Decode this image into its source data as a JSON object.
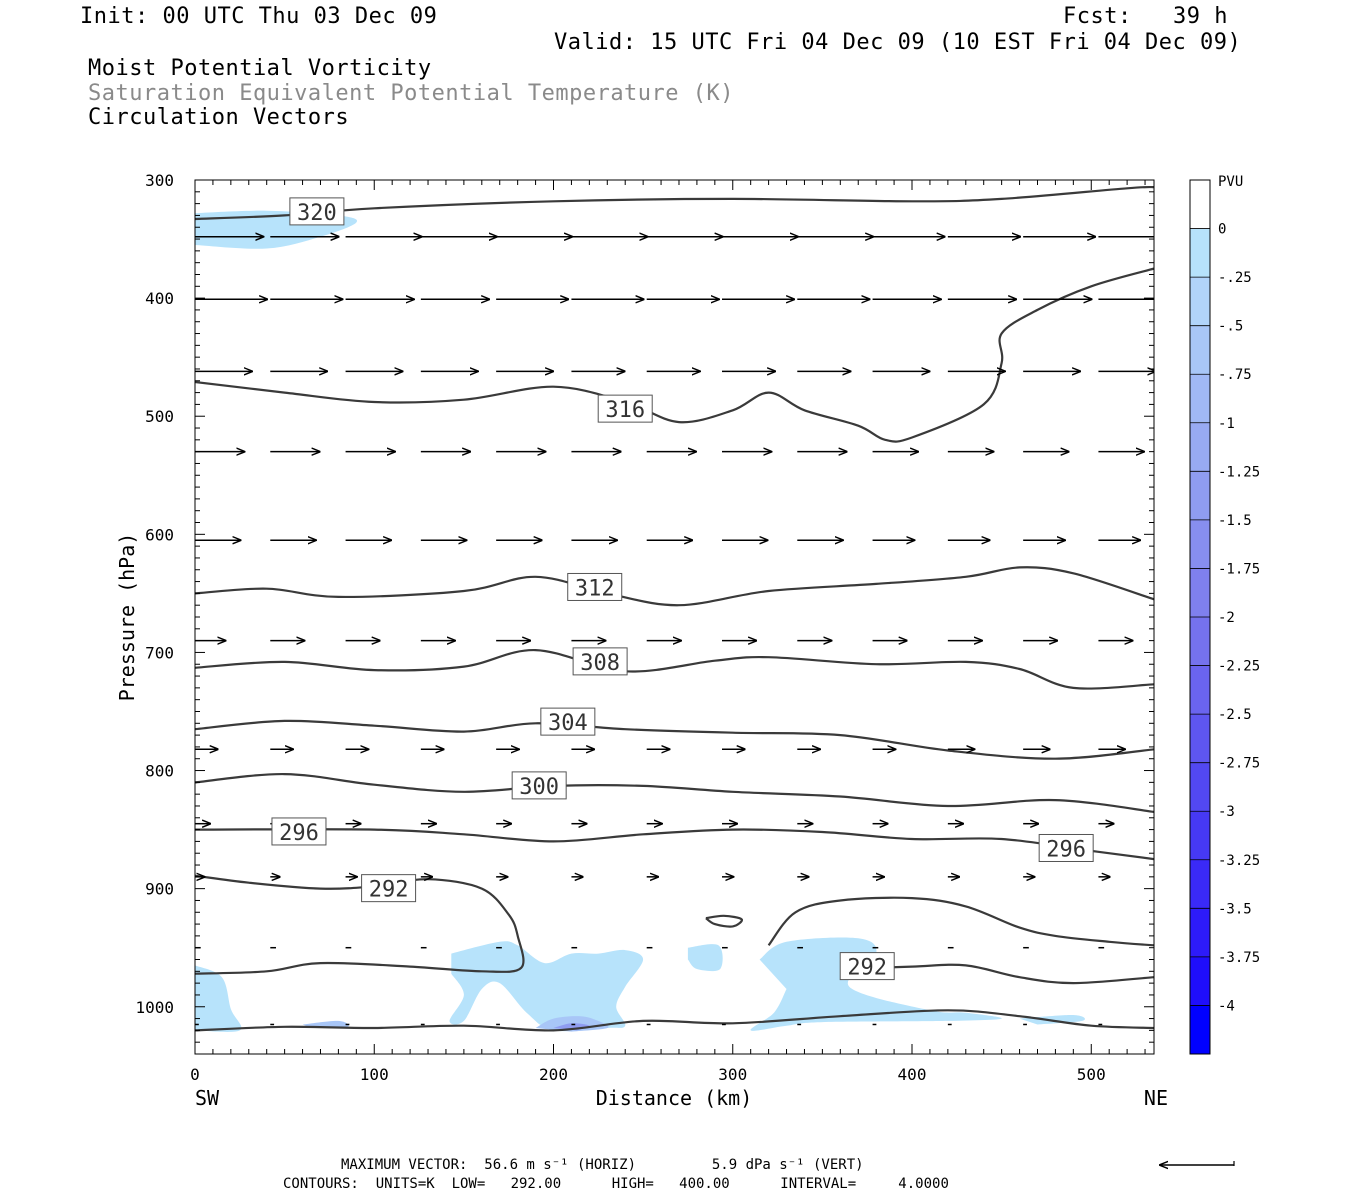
{
  "header": {
    "init": "Init: 00 UTC Thu 03 Dec 09",
    "fcst": "Fcst:   39 h",
    "valid": "Valid: 15 UTC Fri 04 Dec 09 (10 EST Fri 04 Dec 09)",
    "field1": "Moist Potential Vorticity",
    "field2": "Saturation Equivalent Potential Temperature (K)",
    "field3": "Circulation Vectors"
  },
  "footer": {
    "max_vector": "MAXIMUM VECTOR:  56.6 m s⁻¹ (HORIZ)         5.9 dPa s⁻¹ (VERT)",
    "contours": "CONTOURS:  UNITS=K  LOW=   292.00      HIGH=   400.00      INTERVAL=     4.0000"
  },
  "colors": {
    "contour": "#3a3a3a",
    "pv_light": "#b7e3fb",
    "pv_mid": "#a8c6f7",
    "pv_dark": "#7f88ee",
    "colorbar_deep": "#0000ff"
  },
  "chart_data": {
    "type": "cross-section",
    "title": "Moist Potential Vorticity / Saturation Equivalent Potential Temperature (K) / Circulation Vectors",
    "xlabel": "Distance (km)",
    "ylabel": "Pressure (hPa)",
    "xlim": [
      0,
      535
    ],
    "ylim": [
      1040,
      300
    ],
    "x_ticks": [
      0,
      100,
      200,
      300,
      400,
      500
    ],
    "y_ticks": [
      300,
      400,
      500,
      600,
      700,
      800,
      900,
      1000
    ],
    "x_end_labels": {
      "left": "SW",
      "right": "NE"
    },
    "colorbar": {
      "title": "PVU",
      "levels": [
        "0",
        "-.25",
        "-.5",
        "-.75",
        "-1",
        "-1.25",
        "-1.5",
        "-1.75",
        "-2",
        "-2.25",
        "-2.5",
        "-2.75",
        "-3",
        "-3.25",
        "-3.5",
        "-3.75",
        "-4"
      ],
      "colors": [
        "#ffffff",
        "#b7e3fb",
        "#b1d4fa",
        "#a8c6f7",
        "#a0b8f5",
        "#98aaf3",
        "#8f9cf1",
        "#878eef",
        "#7f80ee",
        "#7572ee",
        "#6a64ef",
        "#5e56f0",
        "#5248f2",
        "#4639f4",
        "#3a2af7",
        "#2d1bfa",
        "#1f0efc",
        "#0000ff"
      ]
    },
    "theta_e_contours": [
      {
        "value": 320,
        "label": "320",
        "label_at": [
          68,
          327
        ],
        "points": [
          [
            0,
            333
          ],
          [
            50,
            330
          ],
          [
            100,
            324
          ],
          [
            200,
            318
          ],
          [
            300,
            316
          ],
          [
            400,
            318
          ],
          [
            450,
            316
          ],
          [
            520,
            307
          ],
          [
            535,
            306
          ]
        ]
      },
      {
        "value": 316,
        "label": "316",
        "label_at": [
          240,
          494
        ],
        "points": [
          [
            0,
            471
          ],
          [
            50,
            480
          ],
          [
            100,
            488
          ],
          [
            150,
            486
          ],
          [
            200,
            475
          ],
          [
            240,
            488
          ],
          [
            270,
            505
          ],
          [
            300,
            495
          ],
          [
            320,
            480
          ],
          [
            340,
            495
          ],
          [
            370,
            508
          ],
          [
            385,
            520
          ],
          [
            400,
            518
          ],
          [
            440,
            490
          ],
          [
            450,
            455
          ],
          [
            450,
            430
          ],
          [
            470,
            410
          ],
          [
            500,
            390
          ],
          [
            535,
            375
          ]
        ]
      },
      {
        "value": 312,
        "label": "312",
        "label_at": [
          223,
          645
        ],
        "points": [
          [
            0,
            650
          ],
          [
            40,
            646
          ],
          [
            80,
            653
          ],
          [
            150,
            648
          ],
          [
            190,
            636
          ],
          [
            230,
            650
          ],
          [
            270,
            660
          ],
          [
            320,
            648
          ],
          [
            380,
            642
          ],
          [
            430,
            636
          ],
          [
            460,
            628
          ],
          [
            490,
            633
          ],
          [
            535,
            655
          ]
        ]
      },
      {
        "value": 308,
        "label": "308",
        "label_at": [
          226,
          708
        ],
        "points": [
          [
            0,
            713
          ],
          [
            50,
            708
          ],
          [
            100,
            715
          ],
          [
            150,
            712
          ],
          [
            190,
            698
          ],
          [
            240,
            716
          ],
          [
            290,
            707
          ],
          [
            320,
            704
          ],
          [
            380,
            710
          ],
          [
            430,
            708
          ],
          [
            460,
            714
          ],
          [
            490,
            730
          ],
          [
            535,
            727
          ]
        ]
      },
      {
        "value": 304,
        "label": "304",
        "label_at": [
          208,
          759
        ],
        "points": [
          [
            0,
            765
          ],
          [
            50,
            758
          ],
          [
            100,
            762
          ],
          [
            150,
            767
          ],
          [
            190,
            760
          ],
          [
            240,
            765
          ],
          [
            300,
            768
          ],
          [
            360,
            770
          ],
          [
            420,
            783
          ],
          [
            480,
            790
          ],
          [
            535,
            782
          ]
        ]
      },
      {
        "value": 300,
        "label": "300",
        "label_at": [
          192,
          813
        ],
        "points": [
          [
            0,
            810
          ],
          [
            50,
            803
          ],
          [
            100,
            812
          ],
          [
            150,
            818
          ],
          [
            200,
            813
          ],
          [
            250,
            813
          ],
          [
            300,
            818
          ],
          [
            360,
            822
          ],
          [
            420,
            830
          ],
          [
            480,
            825
          ],
          [
            535,
            835
          ]
        ]
      },
      {
        "value": 296,
        "label": "296",
        "label_at": [
          58,
          852
        ],
        "points": [
          [
            0,
            850
          ],
          [
            100,
            850
          ],
          [
            150,
            854
          ],
          [
            200,
            860
          ],
          [
            250,
            854
          ],
          [
            300,
            850
          ],
          [
            350,
            852
          ],
          [
            400,
            858
          ],
          [
            450,
            858
          ],
          [
            500,
            868
          ],
          [
            535,
            875
          ]
        ]
      },
      {
        "value": 296,
        "label": "296",
        "label_at": [
          486,
          866
        ],
        "points": []
      },
      {
        "value": 292,
        "label": "292",
        "label_at": [
          108,
          900
        ],
        "points": [
          [
            0,
            889
          ],
          [
            30,
            895
          ],
          [
            70,
            900
          ],
          [
            100,
            898
          ],
          [
            130,
            892
          ],
          [
            160,
            900
          ],
          [
            175,
            922
          ],
          [
            180,
            940
          ],
          [
            182,
            967
          ],
          [
            160,
            970
          ],
          [
            120,
            966
          ],
          [
            70,
            963
          ],
          [
            40,
            970
          ],
          [
            0,
            972
          ]
        ]
      },
      {
        "value": 292,
        "label": "292",
        "label_at": [
          375,
          966
        ],
        "points": [
          [
            320,
            948
          ],
          [
            335,
            920
          ],
          [
            360,
            910
          ],
          [
            400,
            908
          ],
          [
            430,
            915
          ],
          [
            460,
            933
          ],
          [
            480,
            940
          ],
          [
            510,
            945
          ],
          [
            535,
            948
          ]
        ]
      },
      {
        "value": 292,
        "label": "292",
        "label_at": [
          375,
          966
        ],
        "points": [
          [
            360,
            968
          ],
          [
            400,
            966
          ],
          [
            430,
            965
          ],
          [
            460,
            975
          ],
          [
            490,
            980
          ],
          [
            535,
            975
          ]
        ]
      },
      {
        "value": 288,
        "label": "",
        "label_at": [
          0,
          0
        ],
        "points": [
          [
            0,
            1020
          ],
          [
            50,
            1017
          ],
          [
            100,
            1018
          ],
          [
            150,
            1016
          ],
          [
            200,
            1020
          ],
          [
            250,
            1012
          ],
          [
            300,
            1014
          ],
          [
            360,
            1008
          ],
          [
            420,
            1003
          ],
          [
            460,
            1008
          ],
          [
            500,
            1016
          ],
          [
            535,
            1018
          ]
        ]
      },
      {
        "value": 0,
        "label": "",
        "label_at": [
          0,
          0
        ],
        "points": [
          [
            285,
            925
          ],
          [
            295,
            923
          ],
          [
            305,
            926
          ],
          [
            300,
            932
          ],
          [
            290,
            930
          ],
          [
            285,
            925
          ]
        ]
      }
    ],
    "pv_shading": [
      {
        "level": "-.25",
        "points": [
          [
            0,
            328
          ],
          [
            40,
            326
          ],
          [
            80,
            330
          ],
          [
            90,
            336
          ],
          [
            70,
            348
          ],
          [
            40,
            358
          ],
          [
            0,
            355
          ]
        ]
      },
      {
        "level": "-.25",
        "points": [
          [
            143,
            955
          ],
          [
            170,
            945
          ],
          [
            180,
            948
          ],
          [
            195,
            963
          ],
          [
            210,
            955
          ],
          [
            225,
            955
          ],
          [
            240,
            952
          ],
          [
            250,
            960
          ],
          [
            240,
            983
          ],
          [
            235,
            1000
          ],
          [
            240,
            1016
          ],
          [
            230,
            1018
          ],
          [
            200,
            1020
          ],
          [
            185,
            1005
          ],
          [
            170,
            980
          ],
          [
            160,
            985
          ],
          [
            150,
            1012
          ],
          [
            142,
            1012
          ],
          [
            150,
            990
          ],
          [
            143,
            972
          ]
        ]
      },
      {
        "level": "-.25",
        "points": [
          [
            315,
            960
          ],
          [
            330,
            945
          ],
          [
            370,
            942
          ],
          [
            380,
            955
          ],
          [
            365,
            983
          ],
          [
            410,
            1003
          ],
          [
            430,
            1005
          ],
          [
            450,
            1010
          ],
          [
            420,
            1012
          ],
          [
            350,
            1013
          ],
          [
            330,
            1016
          ],
          [
            310,
            1020
          ],
          [
            323,
            1005
          ],
          [
            330,
            985
          ]
        ]
      },
      {
        "level": "-.25",
        "points": [
          [
            275,
            950
          ],
          [
            292,
            948
          ],
          [
            293,
            968
          ],
          [
            280,
            968
          ],
          [
            275,
            960
          ]
        ]
      },
      {
        "level": "-.25",
        "points": [
          [
            0,
            965
          ],
          [
            15,
            975
          ],
          [
            20,
            1002
          ],
          [
            25,
            1020
          ],
          [
            0,
            1020
          ]
        ]
      },
      {
        "level": "-.25",
        "points": [
          [
            460,
            1010
          ],
          [
            490,
            1007
          ],
          [
            495,
            1012
          ],
          [
            470,
            1015
          ]
        ]
      },
      {
        "level": "-.75",
        "points": [
          [
            190,
            1018
          ],
          [
            200,
            1010
          ],
          [
            215,
            1008
          ],
          [
            225,
            1012
          ],
          [
            230,
            1018
          ],
          [
            210,
            1021
          ]
        ]
      },
      {
        "level": "-.75",
        "points": [
          [
            60,
            1015
          ],
          [
            80,
            1012
          ],
          [
            85,
            1017
          ],
          [
            65,
            1018
          ]
        ]
      },
      {
        "level": "-1.5",
        "points": [
          [
            200,
            1018
          ],
          [
            210,
            1014
          ],
          [
            220,
            1016
          ],
          [
            213,
            1020
          ]
        ]
      }
    ],
    "circulation_vectors": {
      "x_positions": [
        0,
        42,
        84,
        126,
        168,
        210,
        252,
        294,
        336,
        378,
        420,
        462,
        504,
        535
      ],
      "rows": [
        {
          "p": 348,
          "u": [
            36,
            36,
            40,
            40,
            40,
            40,
            40,
            40,
            40,
            38,
            38,
            38,
            38,
            34
          ]
        },
        {
          "p": 401,
          "u": [
            38,
            38,
            36,
            36,
            38,
            38,
            38,
            38,
            38,
            36,
            36,
            36,
            34,
            30
          ]
        },
        {
          "p": 462,
          "u": [
            30,
            30,
            30,
            30,
            30,
            28,
            28,
            28,
            28,
            30,
            30,
            30,
            30,
            30
          ]
        },
        {
          "p": 530,
          "u": [
            26,
            26,
            26,
            26,
            26,
            26,
            26,
            26,
            26,
            24,
            24,
            24,
            24,
            24
          ]
        },
        {
          "p": 605,
          "u": [
            24,
            24,
            24,
            24,
            24,
            24,
            24,
            24,
            24,
            22,
            22,
            22,
            22,
            22
          ]
        },
        {
          "p": 690,
          "u": [
            16,
            18,
            18,
            18,
            18,
            18,
            18,
            18,
            18,
            18,
            18,
            18,
            18,
            18
          ]
        },
        {
          "p": 782,
          "u": [
            12,
            12,
            12,
            12,
            12,
            12,
            12,
            12,
            12,
            12,
            14,
            14,
            14,
            14
          ]
        },
        {
          "p": 845,
          "u": [
            8,
            8,
            8,
            8,
            8,
            8,
            8,
            8,
            8,
            8,
            8,
            8,
            8,
            8
          ]
        },
        {
          "p": 890,
          "u": [
            5,
            5,
            6,
            6,
            6,
            6,
            6,
            6,
            6,
            6,
            6,
            6,
            6,
            6
          ]
        },
        {
          "p": 950,
          "u": [
            3,
            3,
            3,
            3,
            3,
            3,
            3,
            3,
            3,
            3,
            3,
            3,
            3,
            3
          ]
        },
        {
          "p": 1015,
          "u": [
            2,
            2,
            2,
            2,
            2,
            2,
            2,
            2,
            2,
            2,
            2,
            2,
            2,
            2
          ]
        }
      ]
    }
  }
}
